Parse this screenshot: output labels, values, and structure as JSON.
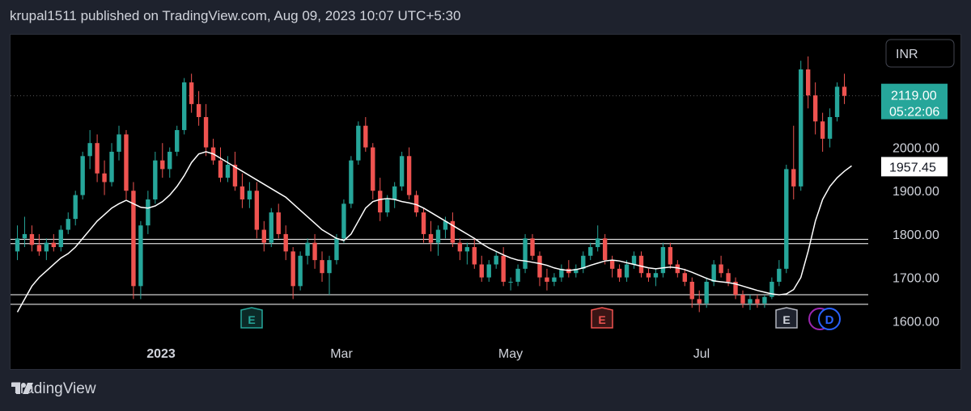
{
  "header": {
    "publish_line": "krupal1511 published on TradingView.com, Aug 09, 2023 10:07 UTC+5:30"
  },
  "footer": {
    "brand": "TradingView"
  },
  "colors": {
    "up": "#26a69a",
    "down": "#ef5350",
    "ma": "#ffffff",
    "bg": "#000000",
    "price_label_bg": "#26a69a"
  },
  "chart_data": {
    "type": "candlestick",
    "currency": "INR",
    "x_ticks": [
      "2023",
      "Mar",
      "May",
      "Jul"
    ],
    "y_ticks": [
      "1600.00",
      "1700.00",
      "1800.00",
      "1900.00",
      "2000.00"
    ],
    "ylim": [
      1580,
      2260
    ],
    "last_price": {
      "value": "2119.00",
      "countdown": "05:22:06"
    },
    "ma_label": "1957.45",
    "horizontal_lines": [
      1788,
      1778,
      1660,
      1638
    ],
    "earnings_markers": [
      "E",
      "E",
      "E"
    ],
    "dividend_marker": "D",
    "candles": [
      [
        1760,
        1820,
        1740,
        1790
      ],
      [
        1790,
        1840,
        1770,
        1800
      ],
      [
        1800,
        1820,
        1760,
        1775
      ],
      [
        1775,
        1800,
        1750,
        1760
      ],
      [
        1760,
        1790,
        1740,
        1780
      ],
      [
        1780,
        1800,
        1760,
        1770
      ],
      [
        1770,
        1820,
        1760,
        1810
      ],
      [
        1810,
        1850,
        1800,
        1835
      ],
      [
        1835,
        1900,
        1820,
        1890
      ],
      [
        1890,
        1990,
        1880,
        1980
      ],
      [
        1980,
        2040,
        1950,
        2010
      ],
      [
        2010,
        2030,
        1920,
        1940
      ],
      [
        1940,
        1970,
        1890,
        1920
      ],
      [
        1920,
        2010,
        1910,
        1990
      ],
      [
        1990,
        2050,
        1970,
        2030
      ],
      [
        2030,
        2040,
        1880,
        1900
      ],
      [
        1900,
        1920,
        1650,
        1680
      ],
      [
        1680,
        1830,
        1650,
        1820
      ],
      [
        1820,
        1900,
        1800,
        1880
      ],
      [
        1880,
        1990,
        1870,
        1970
      ],
      [
        1970,
        2010,
        1930,
        1950
      ],
      [
        1950,
        2000,
        1930,
        1990
      ],
      [
        1990,
        2050,
        1980,
        2040
      ],
      [
        2040,
        2160,
        2030,
        2150
      ],
      [
        2150,
        2170,
        2080,
        2100
      ],
      [
        2100,
        2130,
        2050,
        2070
      ],
      [
        2070,
        2100,
        1980,
        2000
      ],
      [
        2000,
        2020,
        1960,
        1970
      ],
      [
        1970,
        2000,
        1920,
        1930
      ],
      [
        1930,
        1980,
        1920,
        1960
      ],
      [
        1960,
        1990,
        1900,
        1910
      ],
      [
        1910,
        1940,
        1860,
        1880
      ],
      [
        1880,
        1920,
        1860,
        1900
      ],
      [
        1900,
        1920,
        1790,
        1810
      ],
      [
        1810,
        1830,
        1760,
        1780
      ],
      [
        1780,
        1860,
        1770,
        1850
      ],
      [
        1850,
        1870,
        1790,
        1800
      ],
      [
        1800,
        1820,
        1740,
        1760
      ],
      [
        1760,
        1770,
        1650,
        1680
      ],
      [
        1680,
        1760,
        1670,
        1750
      ],
      [
        1750,
        1790,
        1730,
        1780
      ],
      [
        1780,
        1800,
        1720,
        1740
      ],
      [
        1740,
        1760,
        1690,
        1710
      ],
      [
        1710,
        1750,
        1660,
        1740
      ],
      [
        1740,
        1800,
        1730,
        1790
      ],
      [
        1790,
        1880,
        1780,
        1870
      ],
      [
        1870,
        1980,
        1860,
        1970
      ],
      [
        1970,
        2060,
        1960,
        2050
      ],
      [
        2050,
        2070,
        1990,
        2000
      ],
      [
        2000,
        2010,
        1880,
        1900
      ],
      [
        1900,
        1930,
        1830,
        1850
      ],
      [
        1850,
        1890,
        1840,
        1880
      ],
      [
        1880,
        1920,
        1860,
        1910
      ],
      [
        1910,
        1990,
        1900,
        1980
      ],
      [
        1980,
        2000,
        1880,
        1890
      ],
      [
        1890,
        1900,
        1840,
        1850
      ],
      [
        1850,
        1860,
        1780,
        1800
      ],
      [
        1800,
        1830,
        1760,
        1780
      ],
      [
        1780,
        1820,
        1750,
        1810
      ],
      [
        1810,
        1840,
        1790,
        1830
      ],
      [
        1830,
        1850,
        1770,
        1780
      ],
      [
        1780,
        1790,
        1740,
        1760
      ],
      [
        1760,
        1780,
        1730,
        1770
      ],
      [
        1770,
        1790,
        1720,
        1730
      ],
      [
        1730,
        1750,
        1690,
        1700
      ],
      [
        1700,
        1740,
        1690,
        1730
      ],
      [
        1730,
        1760,
        1720,
        1750
      ],
      [
        1750,
        1770,
        1680,
        1690
      ],
      [
        1690,
        1700,
        1670,
        1690
      ],
      [
        1690,
        1730,
        1680,
        1720
      ],
      [
        1720,
        1800,
        1710,
        1790
      ],
      [
        1790,
        1800,
        1740,
        1750
      ],
      [
        1750,
        1760,
        1680,
        1700
      ],
      [
        1700,
        1720,
        1670,
        1690
      ],
      [
        1690,
        1710,
        1680,
        1700
      ],
      [
        1700,
        1730,
        1690,
        1720
      ],
      [
        1720,
        1740,
        1700,
        1710
      ],
      [
        1710,
        1730,
        1700,
        1720
      ],
      [
        1720,
        1760,
        1710,
        1750
      ],
      [
        1750,
        1780,
        1740,
        1770
      ],
      [
        1770,
        1820,
        1760,
        1790
      ],
      [
        1790,
        1800,
        1730,
        1740
      ],
      [
        1740,
        1750,
        1700,
        1720
      ],
      [
        1720,
        1730,
        1690,
        1700
      ],
      [
        1700,
        1740,
        1690,
        1730
      ],
      [
        1730,
        1760,
        1720,
        1750
      ],
      [
        1750,
        1760,
        1700,
        1710
      ],
      [
        1710,
        1720,
        1690,
        1700
      ],
      [
        1700,
        1720,
        1680,
        1710
      ],
      [
        1710,
        1780,
        1700,
        1770
      ],
      [
        1770,
        1780,
        1720,
        1730
      ],
      [
        1730,
        1740,
        1700,
        1710
      ],
      [
        1710,
        1720,
        1680,
        1690
      ],
      [
        1690,
        1700,
        1630,
        1650
      ],
      [
        1650,
        1670,
        1620,
        1640
      ],
      [
        1640,
        1700,
        1630,
        1690
      ],
      [
        1690,
        1740,
        1680,
        1730
      ],
      [
        1730,
        1750,
        1700,
        1710
      ],
      [
        1710,
        1720,
        1680,
        1690
      ],
      [
        1690,
        1700,
        1650,
        1660
      ],
      [
        1660,
        1670,
        1630,
        1640
      ],
      [
        1640,
        1660,
        1625,
        1650
      ],
      [
        1650,
        1660,
        1630,
        1640
      ],
      [
        1640,
        1660,
        1630,
        1655
      ],
      [
        1655,
        1700,
        1650,
        1690
      ],
      [
        1690,
        1740,
        1680,
        1720
      ],
      [
        1720,
        1960,
        1710,
        1950
      ],
      [
        1950,
        2050,
        1880,
        1910
      ],
      [
        1910,
        2200,
        1900,
        2180
      ],
      [
        2180,
        2210,
        2090,
        2120
      ],
      [
        2120,
        2150,
        2030,
        2060
      ],
      [
        2060,
        2080,
        1990,
        2020
      ],
      [
        2020,
        2090,
        2000,
        2070
      ],
      [
        2070,
        2150,
        2060,
        2140
      ],
      [
        2140,
        2170,
        2100,
        2119
      ]
    ],
    "ma": [
      1620,
      1650,
      1680,
      1700,
      1715,
      1730,
      1745,
      1755,
      1770,
      1790,
      1810,
      1830,
      1845,
      1860,
      1870,
      1878,
      1870,
      1862,
      1860,
      1865,
      1875,
      1890,
      1910,
      1935,
      1965,
      1985,
      1990,
      1985,
      1975,
      1965,
      1955,
      1945,
      1935,
      1925,
      1915,
      1905,
      1895,
      1885,
      1870,
      1855,
      1840,
      1825,
      1810,
      1800,
      1790,
      1785,
      1800,
      1830,
      1860,
      1875,
      1880,
      1882,
      1880,
      1875,
      1872,
      1868,
      1860,
      1850,
      1840,
      1830,
      1820,
      1810,
      1800,
      1790,
      1778,
      1768,
      1760,
      1752,
      1745,
      1740,
      1738,
      1735,
      1732,
      1728,
      1722,
      1718,
      1716,
      1718,
      1722,
      1728,
      1733,
      1738,
      1740,
      1738,
      1734,
      1730,
      1726,
      1722,
      1720,
      1722,
      1724,
      1722,
      1718,
      1712,
      1705,
      1698,
      1692,
      1690,
      1688,
      1685,
      1680,
      1675,
      1670,
      1666,
      1662,
      1660,
      1662,
      1672,
      1700,
      1760,
      1830,
      1880,
      1910,
      1930,
      1945,
      1957.45
    ]
  }
}
